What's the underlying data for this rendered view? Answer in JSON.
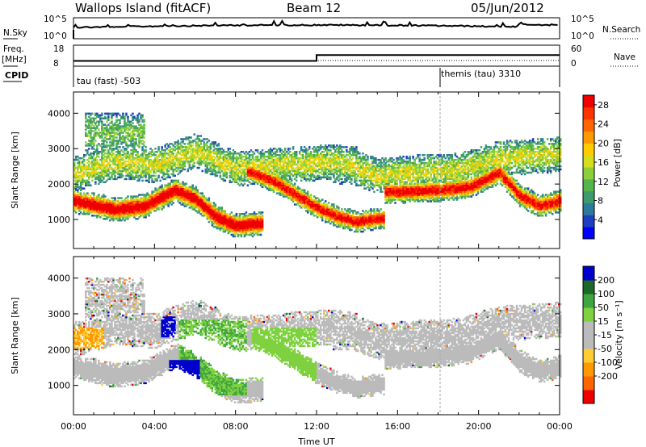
{
  "header": {
    "station": "Wallops Island (fitACF)",
    "beam": "Beam 12",
    "date": "05/Jun/2012"
  },
  "colors": {
    "power": [
      "#0000ff",
      "#1e3fbf",
      "#2e7a9a",
      "#3f9a6e",
      "#55b44e",
      "#8ccf3a",
      "#d4dd1e",
      "#ffcc00",
      "#ff9900",
      "#ff6600",
      "#ff3300",
      "#ee0000"
    ],
    "velocity": [
      "#ee0000",
      "#ff6600",
      "#ff9900",
      "#ffcc33",
      "#bbbbbb",
      "#bbbbbb",
      "#7fd13f",
      "#3fa540",
      "#1c6a2a",
      "#0000cc"
    ]
  },
  "chart_data": [
    {
      "type": "line",
      "title": "",
      "left_label": "N.Sky",
      "right_label": "N.Search",
      "y_left_ticks": [
        "10^5",
        "10^0"
      ],
      "y_right_ticks": [
        "10^5",
        "10^0"
      ]
    },
    {
      "type": "line",
      "left_label": "Freq. [MHz]",
      "right_label": "Nave",
      "y_left_ticks": [
        18,
        8
      ],
      "y_right_ticks": [
        60,
        0
      ],
      "series": [
        {
          "x_hours": [
            0,
            12,
            12,
            24
          ],
          "values": [
            10.5,
            10.5,
            13.3,
            13.3
          ]
        }
      ],
      "annotations": {
        "cpid_label": "CPID",
        "left_mode": "tau (fast) -503",
        "right_mode": "themis (tau) 3310",
        "mode_change_hour": 18.1
      }
    },
    {
      "type": "heatmap",
      "ylabel": "Slant Range [km]",
      "xlabel": "Time UT",
      "xlim": [
        0,
        24
      ],
      "ylim": [
        180,
        4600
      ],
      "y_ticks": [
        1000,
        2000,
        3000,
        4000
      ],
      "x_tick_labels": [
        "00:00",
        "04:00",
        "08:00",
        "12:00",
        "16:00",
        "20:00",
        "00:00"
      ],
      "colorbar": {
        "label": "Power [dB]",
        "ticks": [
          4,
          8,
          12,
          16,
          20,
          24,
          28
        ],
        "range": [
          0,
          30
        ]
      }
    },
    {
      "type": "heatmap",
      "ylabel": "Slant Range [km]",
      "xlabel": "Time UT",
      "xlim": [
        0,
        24
      ],
      "ylim": [
        180,
        4600
      ],
      "y_ticks": [
        1000,
        2000,
        3000,
        4000
      ],
      "x_tick_labels": [
        "00:00",
        "04:00",
        "08:00",
        "12:00",
        "16:00",
        "20:00",
        "00:00"
      ],
      "colorbar": {
        "label": "Velocity [m s⁻¹]",
        "ticks": [
          200,
          100,
          50,
          15,
          -15,
          -50,
          -100,
          -200
        ]
      }
    }
  ],
  "axis": {
    "xlabel": "Time UT"
  }
}
